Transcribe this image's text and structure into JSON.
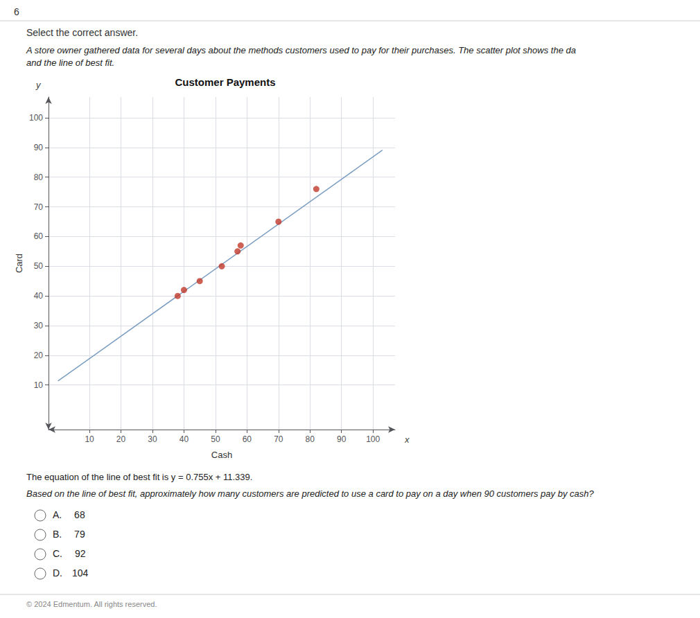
{
  "chart_data": {
    "type": "scatter",
    "title": "Customer Payments",
    "xlabel": "Cash",
    "ylabel": "Card",
    "x_symbol": "x",
    "y_symbol": "y",
    "xlim": [
      -3,
      107
    ],
    "ylim": [
      -5,
      107
    ],
    "xticks": [
      10,
      20,
      30,
      40,
      50,
      60,
      70,
      80,
      90,
      100
    ],
    "yticks": [
      10,
      20,
      30,
      40,
      50,
      60,
      70,
      80,
      90,
      100
    ],
    "grid": true,
    "series": [
      {
        "type": "line",
        "color": "#7a9cc0",
        "x": [
          0,
          103
        ],
        "values": [
          11.339,
          89.104
        ]
      },
      {
        "type": "scatter",
        "color": "#c0392b",
        "x": [
          38,
          40,
          45,
          52,
          57,
          58,
          70,
          82
        ],
        "values": [
          40,
          42,
          45,
          50,
          55,
          57,
          65,
          76
        ]
      }
    ],
    "annotations": {
      "question_number": "6",
      "select_text": "Select the correct answer.",
      "description": [
        "A store owner gathered data for several days about the methods customers used to pay for their purchases. The scatter plot shows the da",
        "and the line of best fit."
      ],
      "equation_text": "The equation of the line of best fit is y = 0.755x + 11.339.",
      "question_text": "Based on the line of best fit, approximately how many customers are predicted to use a card to pay on a day when 90 customers pay by cash?",
      "options": [
        "A.  68",
        "B.  79",
        "C.  92",
        "D. 104"
      ],
      "footer_text": "© 2024 Edmentum. All rights reserved."
    }
  }
}
